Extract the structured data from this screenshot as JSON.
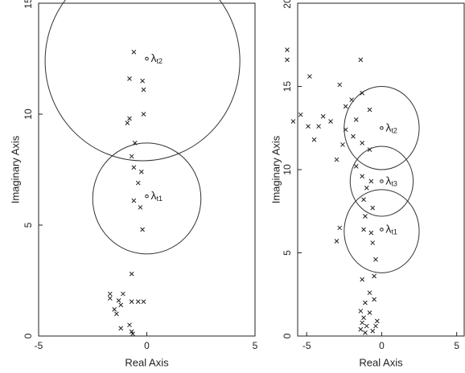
{
  "chart_data": [
    {
      "type": "scatter",
      "x_label": "Real Axis",
      "y_label": "Imaginary Axis",
      "xlim": [
        -5,
        5
      ],
      "ylim": [
        0,
        15
      ],
      "xticks": [
        -5,
        0,
        5
      ],
      "yticks": [
        0,
        5,
        10,
        15
      ],
      "color": "#222222",
      "series": [
        {
          "x": [
            -0.6,
            -0.8,
            -0.2,
            -0.15,
            -0.9,
            -0.8,
            -0.15,
            -0.55,
            -0.7,
            -0.6,
            -0.25,
            -0.4,
            -0.6,
            -0.3,
            -0.2,
            -0.7,
            -1.7,
            -1.7,
            -1.1,
            -1.3,
            -1.2,
            -1.5,
            -1.4,
            -0.7,
            -0.4,
            -0.15,
            -1.2,
            -0.8,
            -0.7,
            -0.65
          ],
          "y": [
            12.8,
            11.6,
            11.5,
            11.1,
            9.6,
            9.8,
            10.0,
            8.7,
            8.1,
            7.6,
            7.4,
            6.9,
            6.1,
            5.8,
            4.8,
            2.8,
            1.9,
            1.7,
            1.9,
            1.6,
            1.4,
            1.2,
            1.0,
            1.55,
            1.55,
            1.55,
            0.35,
            0.5,
            0.2,
            0.1
          ]
        }
      ],
      "circles": [
        {
          "cx": -0.2,
          "cy": 12.4,
          "r": 4.5
        },
        {
          "cx": 0,
          "cy": 6.2,
          "r": 2.5
        }
      ],
      "annotations": [
        {
          "x": 0,
          "y": 12.5,
          "symbol": "λ",
          "sub": "t2"
        },
        {
          "x": 0,
          "y": 6.3,
          "symbol": "λ",
          "sub": "t1"
        }
      ]
    },
    {
      "type": "scatter",
      "x_label": "Real Axis",
      "y_label": "Imaginary Axis",
      "xlim": [
        -5.6,
        5.5
      ],
      "ylim": [
        0,
        20
      ],
      "xticks": [
        -5,
        0,
        5
      ],
      "yticks": [
        0,
        5,
        10,
        15,
        20
      ],
      "color": "#222222",
      "series": [
        {
          "x": [
            -6.3,
            -6.3,
            -4.8,
            -5.9,
            -5.4,
            -4.9,
            -4.5,
            -4.2,
            -3.9,
            -3.4,
            -2.8,
            -2.4,
            -2.0,
            -1.4,
            -1.3,
            -1.7,
            -0.8,
            -2.4,
            -1.9,
            -2.6,
            -1.3,
            -0.8,
            -3.0,
            -1.7,
            -1.3,
            -0.7,
            -1.0,
            -1.2,
            -0.6,
            -1.1,
            -2.8,
            -3.0,
            -1.2,
            -0.7,
            -0.6,
            -0.4,
            -0.5,
            -1.3,
            -0.8,
            -0.5,
            -1.1,
            -1.4,
            -0.8,
            -1.2,
            -1.3,
            -1.0,
            -1.4,
            -1.1,
            -0.6,
            -0.4,
            -0.3
          ],
          "y": [
            17.2,
            16.6,
            15.6,
            12.9,
            13.3,
            12.6,
            11.8,
            12.6,
            13.2,
            12.9,
            15.1,
            13.8,
            14.2,
            16.6,
            14.6,
            13.0,
            13.6,
            12.4,
            12.0,
            11.5,
            11.6,
            11.2,
            10.6,
            10.2,
            9.6,
            9.3,
            8.9,
            8.2,
            7.7,
            7.2,
            6.5,
            5.7,
            6.4,
            6.2,
            5.6,
            4.6,
            3.6,
            3.4,
            2.6,
            2.2,
            2.0,
            1.5,
            1.4,
            1.1,
            0.8,
            0.6,
            0.4,
            0.2,
            0.3,
            0.6,
            0.9
          ]
        }
      ],
      "circles": [
        {
          "cx": 0,
          "cy": 12.5,
          "r": 2.5
        },
        {
          "cx": 0,
          "cy": 9.3,
          "r": 2.1
        },
        {
          "cx": 0,
          "cy": 6.3,
          "r": 2.5
        }
      ],
      "annotations": [
        {
          "x": 0,
          "y": 12.5,
          "symbol": "λ",
          "sub": "t2"
        },
        {
          "x": 0,
          "y": 9.3,
          "symbol": "λ",
          "sub": "t3"
        },
        {
          "x": 0,
          "y": 6.4,
          "symbol": "λ",
          "sub": "t1"
        }
      ]
    }
  ]
}
